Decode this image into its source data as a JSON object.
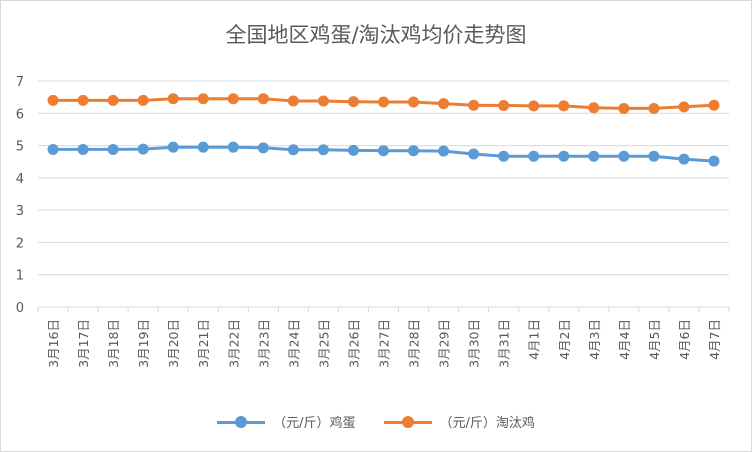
{
  "chart_data": {
    "type": "line",
    "title": "全国地区鸡蛋/淘汰鸡均价走势图",
    "xlabel": "",
    "ylabel": "",
    "ylim": [
      0,
      7
    ],
    "yticks": [
      0,
      1,
      2,
      3,
      4,
      5,
      6,
      7
    ],
    "grid": true,
    "legend_position": "bottom",
    "categories": [
      "3月16日",
      "3月17日",
      "3月18日",
      "3月19日",
      "3月20日",
      "3月21日",
      "3月22日",
      "3月23日",
      "3月24日",
      "3月25日",
      "3月26日",
      "3月27日",
      "3月28日",
      "3月29日",
      "3月30日",
      "3月31日",
      "4月1日",
      "4月2日",
      "4月3日",
      "4月4日",
      "4月5日",
      "4月6日",
      "4月7日"
    ],
    "series": [
      {
        "name": "（元/斤）鸡蛋",
        "color": "#5b9bd5",
        "values": [
          4.88,
          4.88,
          4.88,
          4.89,
          4.95,
          4.95,
          4.95,
          4.93,
          4.87,
          4.87,
          4.85,
          4.84,
          4.84,
          4.83,
          4.74,
          4.67,
          4.67,
          4.67,
          4.67,
          4.67,
          4.67,
          4.58,
          4.52
        ]
      },
      {
        "name": "（元/斤）淘汰鸡",
        "color": "#ed7d31",
        "values": [
          6.4,
          6.4,
          6.4,
          6.4,
          6.45,
          6.45,
          6.45,
          6.45,
          6.38,
          6.38,
          6.36,
          6.35,
          6.35,
          6.3,
          6.25,
          6.24,
          6.23,
          6.23,
          6.17,
          6.15,
          6.15,
          6.2,
          6.25
        ]
      }
    ]
  }
}
